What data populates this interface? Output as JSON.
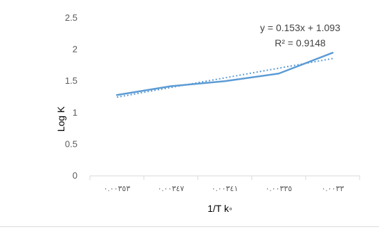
{
  "chart_data": {
    "type": "line",
    "categories": [
      "٠.٠٠٣٥٣",
      "٠.٠٠٣٤٧",
      "٠.٠٠٣٤١",
      "٠.٠٠٣٣٥",
      "٠.٠٠٣٣"
    ],
    "series": [
      {
        "values": [
          1.28,
          1.42,
          1.5,
          1.62,
          1.95
        ],
        "color": "#5b9bd5",
        "style": "solid"
      }
    ],
    "trendline": {
      "type": "linear",
      "slope": 0.153,
      "intercept": 1.093,
      "color": "#5b9bd5",
      "style": "dotted",
      "equation": "y = 0.153x + 1.093",
      "r_squared": "R² = 0.9148"
    },
    "xlabel": "1/T k◦",
    "ylabel": "Log K",
    "ylim": [
      0,
      2.5
    ],
    "yticks": [
      "0",
      "0.5",
      "1",
      "1.5",
      "2",
      "2.5"
    ],
    "grid": false,
    "legend": "none"
  }
}
